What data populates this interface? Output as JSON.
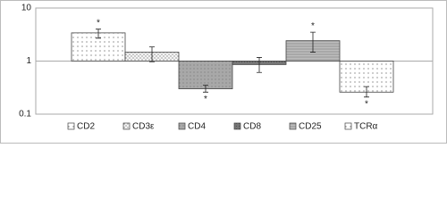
{
  "chart_data": {
    "type": "bar",
    "log_scale": true,
    "baseline": 1,
    "categories": [
      "CD2",
      "CD3ε",
      "CD4",
      "CD8",
      "CD25",
      "TCRα"
    ],
    "values": [
      3.4,
      1.47,
      0.3,
      0.86,
      2.42,
      0.26
    ],
    "error_bars": [
      [
        2.7,
        4.0
      ],
      [
        0.97,
        1.85
      ],
      [
        0.26,
        0.35
      ],
      [
        0.61,
        1.17
      ],
      [
        1.47,
        3.5
      ],
      [
        0.21,
        0.33
      ]
    ],
    "significance": [
      "*",
      null,
      "*",
      null,
      "*",
      "*"
    ],
    "fills": [
      "dots",
      "fine-dots",
      "gray-dots",
      "dark",
      "stripes",
      "dots"
    ],
    "ylim": [
      0.1,
      10
    ],
    "yticks": [
      0.1,
      1,
      10
    ],
    "grid": true,
    "legend": "bottom"
  }
}
